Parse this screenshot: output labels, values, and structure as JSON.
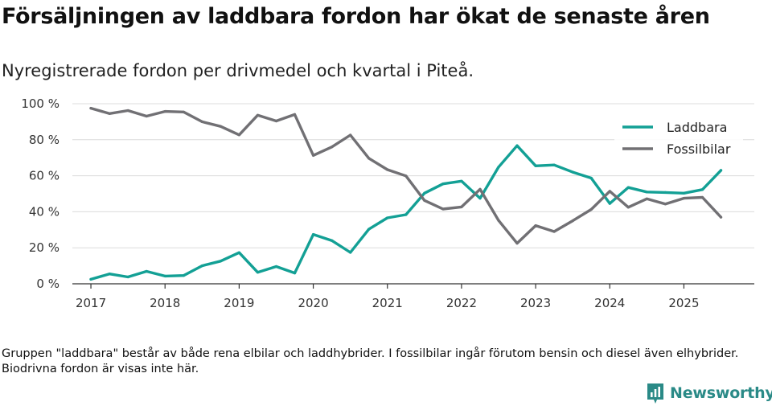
{
  "header": {
    "title": "Försäljningen av laddbara fordon har ökat de senaste åren",
    "subtitle": "Nyregistrerade fordon per drivmedel och kvartal i Piteå."
  },
  "footnote": "Gruppen \"laddbara\" består av både rena elbilar och laddhybrider. I fossilbilar ingår förutom bensin och diesel även elhybrider. Biodrivna fordon är visas inte här.",
  "brand": {
    "name": "Newsworthy",
    "icon": "newsworthy-logo-icon",
    "color": "#2a8a87"
  },
  "chart_data": {
    "type": "line",
    "title": "Nyregistrerade fordon per drivmedel och kvartal i Piteå.",
    "xlabel": "",
    "ylabel": "",
    "ylim": [
      0,
      100
    ],
    "xlim": [
      2016.75,
      2025.95
    ],
    "y_ticks": [
      0,
      20,
      40,
      60,
      80,
      100
    ],
    "y_tick_labels": [
      "0 %",
      "20 %",
      "40 %",
      "60 %",
      "80 %",
      "100 %"
    ],
    "x_ticks": [
      2017,
      2018,
      2019,
      2020,
      2021,
      2022,
      2023,
      2024,
      2025
    ],
    "x_tick_labels": [
      "2017",
      "2018",
      "2019",
      "2020",
      "2021",
      "2022",
      "2023",
      "2024",
      "2025"
    ],
    "grid": true,
    "legend_position": "top-right",
    "x": [
      2017.0,
      2017.25,
      2017.5,
      2017.75,
      2018.0,
      2018.25,
      2018.5,
      2018.75,
      2019.0,
      2019.25,
      2019.5,
      2019.75,
      2020.0,
      2020.25,
      2020.5,
      2020.75,
      2021.0,
      2021.25,
      2021.5,
      2021.75,
      2022.0,
      2022.25,
      2022.5,
      2022.75,
      2023.0,
      2023.25,
      2023.5,
      2023.75,
      2024.0,
      2024.25,
      2024.5,
      2024.75,
      2025.0,
      2025.25,
      2025.5
    ],
    "series": [
      {
        "name": "Laddbara",
        "color": "#13a095",
        "values": [
          2.5,
          5.5,
          3.8,
          6.9,
          4.3,
          4.6,
          10.0,
          12.6,
          17.3,
          6.4,
          9.6,
          6.0,
          27.4,
          24.0,
          17.4,
          30.3,
          36.6,
          38.4,
          50.3,
          55.5,
          57.0,
          47.5,
          64.8,
          76.7,
          65.5,
          66.0,
          62.0,
          58.7,
          44.6,
          53.5,
          51.0,
          50.7,
          50.3,
          52.3,
          63.0
        ]
      },
      {
        "name": "Fossilbilar",
        "color": "#717074",
        "values": [
          97.5,
          94.5,
          96.2,
          93.1,
          95.7,
          95.4,
          90.0,
          87.4,
          82.7,
          93.6,
          90.4,
          94.0,
          71.3,
          76.0,
          82.6,
          69.7,
          63.4,
          59.9,
          46.3,
          41.5,
          42.7,
          52.5,
          35.2,
          22.5,
          32.3,
          29.0,
          35.0,
          41.3,
          51.4,
          42.5,
          47.2,
          44.3,
          47.5,
          48.0,
          37.0
        ]
      }
    ]
  }
}
